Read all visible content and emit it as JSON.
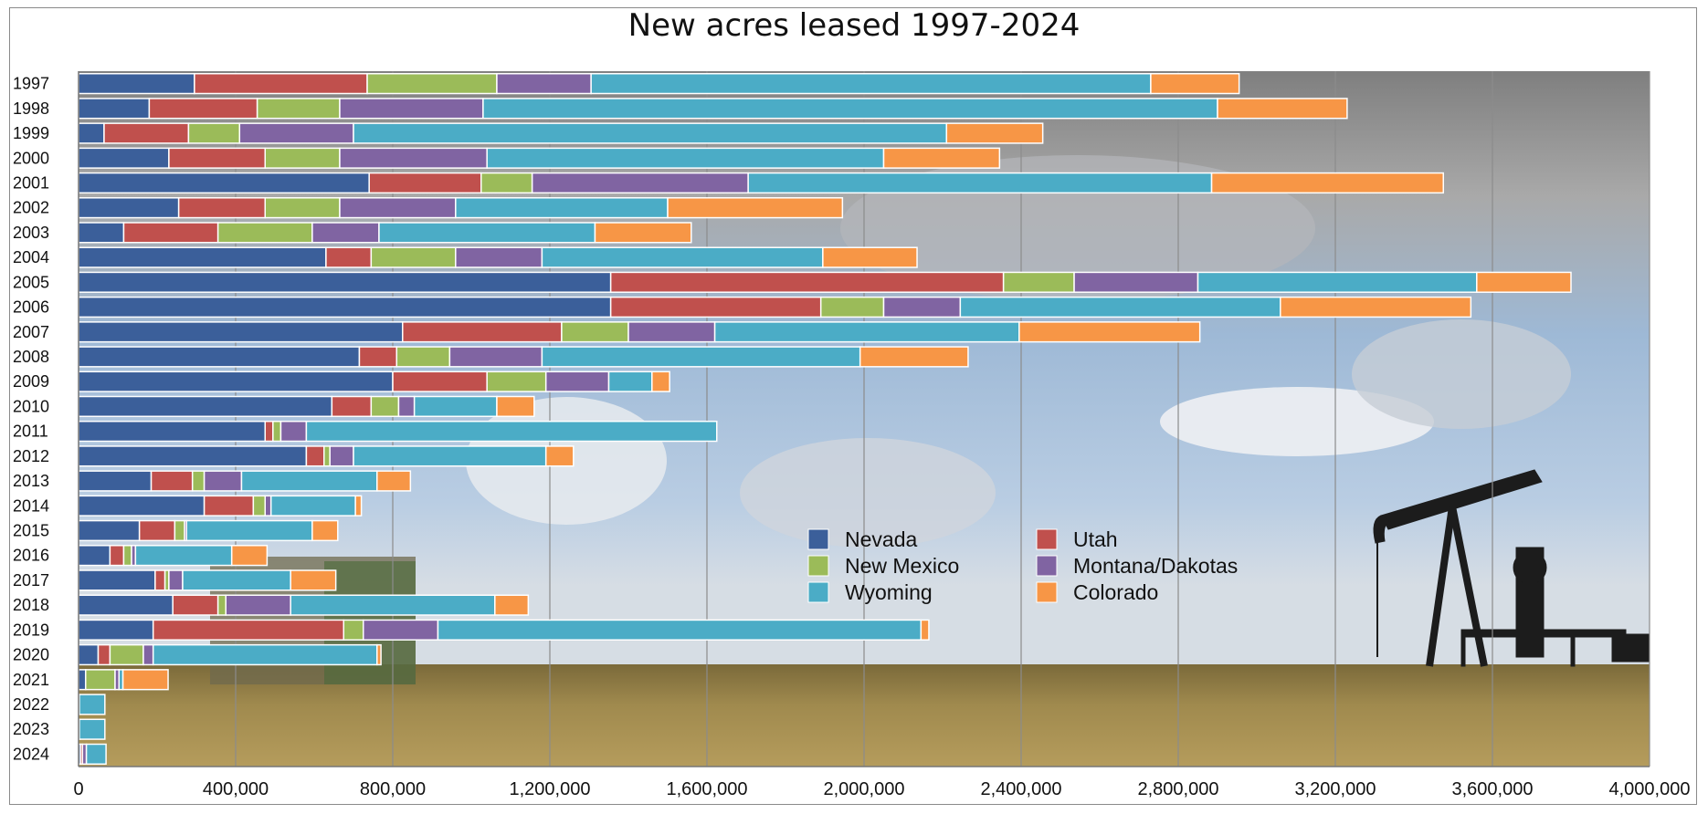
{
  "chart_data": {
    "type": "bar",
    "orientation": "horizontal",
    "stacked": true,
    "title": "New acres leased 1997-2024",
    "categories": [
      "1997",
      "1998",
      "1999",
      "2000",
      "2001",
      "2002",
      "2003",
      "2004",
      "2005",
      "2006",
      "2007",
      "2008",
      "2009",
      "2010",
      "2011",
      "2012",
      "2013",
      "2014",
      "2015",
      "2016",
      "2017",
      "2018",
      "2019",
      "2020",
      "2021",
      "2022",
      "2023",
      "2024"
    ],
    "xlim": [
      0,
      4000000
    ],
    "x_tick_values": [
      0,
      400000,
      800000,
      1200000,
      1600000,
      2000000,
      2400000,
      2800000,
      3200000,
      3600000,
      4000000
    ],
    "x_tick_labels": [
      "0",
      "400,000",
      "800,000",
      "1,200,000",
      "1,600,000",
      "2,000,000",
      "2,400,000",
      "2,800,000",
      "3,200,000",
      "3,600,000",
      "4,000,000"
    ],
    "grid": "vertical",
    "legend_position": "center-right",
    "background": "photo of oil pumpjack in a grassy field under cloudy sky",
    "series": [
      {
        "name": "Nevada",
        "color": "#3b5f9a",
        "values": [
          295000,
          180000,
          65000,
          230000,
          740000,
          255000,
          115000,
          630000,
          1355000,
          1355000,
          825000,
          715000,
          800000,
          645000,
          475000,
          580000,
          185000,
          320000,
          155000,
          80000,
          195000,
          240000,
          190000,
          50000,
          18000,
          2000,
          2000,
          5000
        ]
      },
      {
        "name": "Utah",
        "color": "#c0504d",
        "values": [
          440000,
          275000,
          215000,
          245000,
          285000,
          220000,
          240000,
          115000,
          1000000,
          535000,
          405000,
          95000,
          240000,
          100000,
          20000,
          45000,
          105000,
          125000,
          90000,
          35000,
          25000,
          115000,
          485000,
          30000,
          0,
          0,
          0,
          5000
        ]
      },
      {
        "name": "New Mexico",
        "color": "#9bbb59",
        "values": [
          330000,
          210000,
          130000,
          190000,
          130000,
          190000,
          240000,
          215000,
          180000,
          160000,
          170000,
          135000,
          150000,
          70000,
          20000,
          15000,
          30000,
          30000,
          25000,
          20000,
          10000,
          20000,
          50000,
          85000,
          75000,
          0,
          0,
          0
        ]
      },
      {
        "name": "Montana/Dakotas",
        "color": "#8064a2",
        "values": [
          240000,
          365000,
          290000,
          375000,
          550000,
          295000,
          170000,
          220000,
          315000,
          195000,
          220000,
          235000,
          160000,
          40000,
          65000,
          60000,
          95000,
          15000,
          5000,
          10000,
          35000,
          165000,
          190000,
          25000,
          10000,
          0,
          0,
          10000
        ]
      },
      {
        "name": "Wyoming",
        "color": "#4bacc6",
        "values": [
          1425000,
          1870000,
          1510000,
          1010000,
          1180000,
          540000,
          550000,
          715000,
          710000,
          815000,
          775000,
          810000,
          110000,
          210000,
          1045000,
          490000,
          345000,
          215000,
          320000,
          245000,
          275000,
          520000,
          1230000,
          570000,
          10000,
          65000,
          65000,
          50000
        ]
      },
      {
        "name": "Colorado",
        "color": "#f79646",
        "values": [
          225000,
          330000,
          245000,
          295000,
          590000,
          445000,
          245000,
          240000,
          240000,
          485000,
          460000,
          275000,
          45000,
          95000,
          0,
          70000,
          85000,
          15000,
          65000,
          90000,
          115000,
          85000,
          20000,
          10000,
          115000,
          0,
          0,
          0
        ]
      }
    ]
  }
}
